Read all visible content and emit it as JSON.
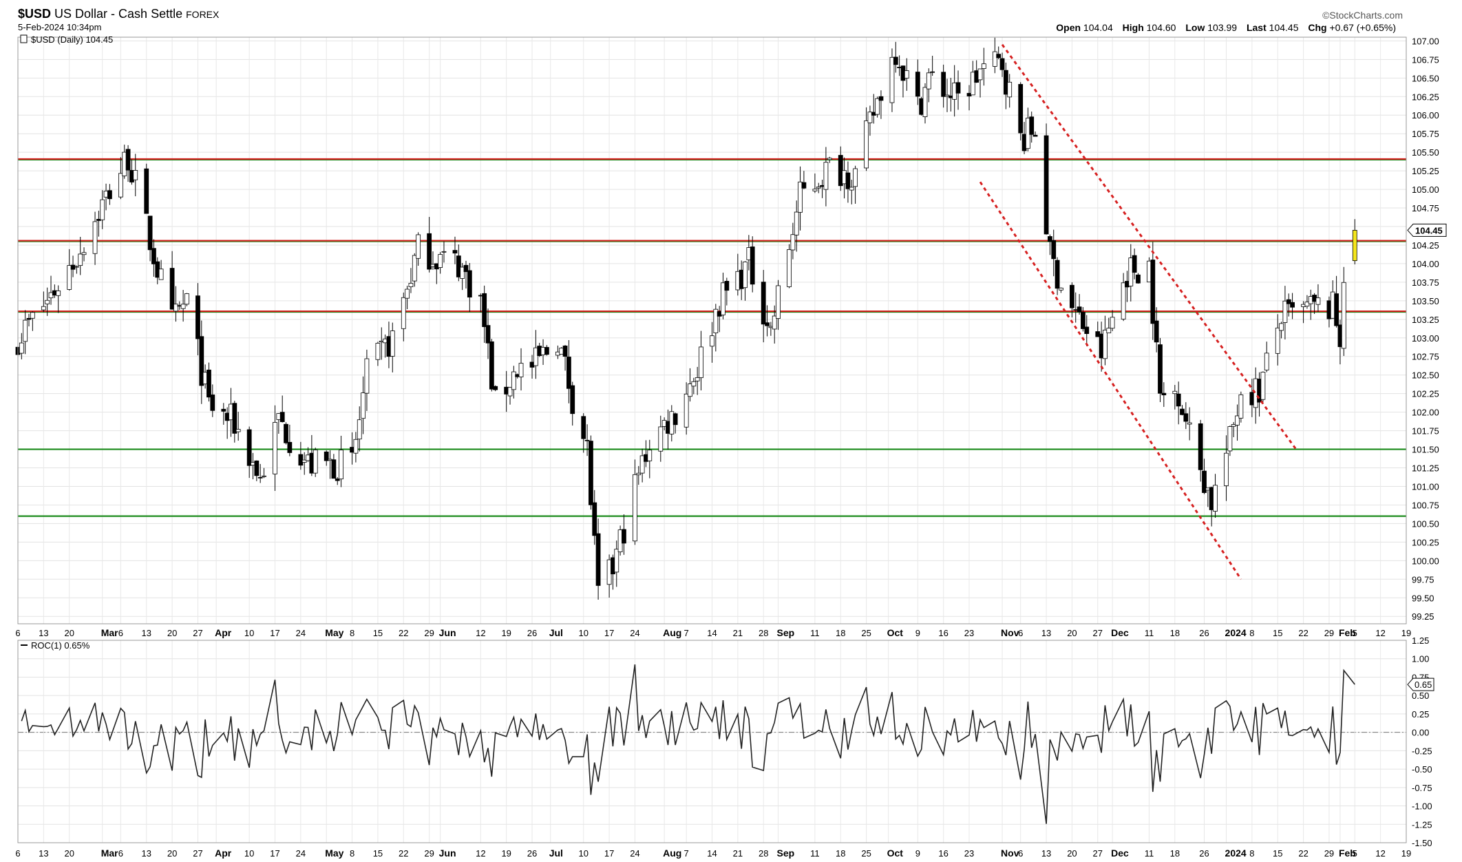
{
  "header": {
    "symbol": "$USD",
    "name": "US Dollar - Cash Settle",
    "exchange": "FOREX",
    "timestamp": "5-Feb-2024 10:34pm",
    "brand": "©StockCharts.com",
    "open_label": "Open",
    "open": "104.04",
    "high_label": "High",
    "high": "104.60",
    "low_label": "Low",
    "low": "103.99",
    "last_label": "Last",
    "last": "104.45",
    "chg_label": "Chg",
    "chg": "+0.67 (+0.65%)"
  },
  "chart_data": [
    {
      "type": "candlestick",
      "legend": "$USD (Daily) 104.45",
      "last_label": "104.45",
      "y_ticks": [
        "99.25",
        "99.50",
        "99.75",
        "100.00",
        "100.25",
        "100.50",
        "100.75",
        "101.00",
        "101.25",
        "101.50",
        "101.75",
        "102.00",
        "102.25",
        "102.50",
        "102.75",
        "103.00",
        "103.25",
        "103.50",
        "103.75",
        "104.00",
        "104.25",
        "104.50",
        "104.75",
        "105.00",
        "105.25",
        "105.50",
        "105.75",
        "106.00",
        "106.25",
        "106.50",
        "106.75",
        "107.00"
      ],
      "ylim": [
        99.15,
        107.05
      ],
      "date_range": [
        "2023-02-06",
        "2024-02-19"
      ],
      "x_ticks": [
        {
          "date": "2023-02-06",
          "label": "6",
          "month": false
        },
        {
          "date": "2023-02-13",
          "label": "13",
          "month": false
        },
        {
          "date": "2023-02-20",
          "label": "20",
          "month": false
        },
        {
          "date": "2023-03-01",
          "label": "Mar",
          "month": true
        },
        {
          "date": "2023-03-06",
          "label": "6",
          "month": false
        },
        {
          "date": "2023-03-13",
          "label": "13",
          "month": false
        },
        {
          "date": "2023-03-20",
          "label": "20",
          "month": false
        },
        {
          "date": "2023-03-27",
          "label": "27",
          "month": false
        },
        {
          "date": "2023-04-01",
          "label": "Apr",
          "month": true
        },
        {
          "date": "2023-04-10",
          "label": "10",
          "month": false
        },
        {
          "date": "2023-04-17",
          "label": "17",
          "month": false
        },
        {
          "date": "2023-04-24",
          "label": "24",
          "month": false
        },
        {
          "date": "2023-05-01",
          "label": "May",
          "month": true
        },
        {
          "date": "2023-05-08",
          "label": "8",
          "month": false
        },
        {
          "date": "2023-05-15",
          "label": "15",
          "month": false
        },
        {
          "date": "2023-05-22",
          "label": "22",
          "month": false
        },
        {
          "date": "2023-05-29",
          "label": "29",
          "month": false
        },
        {
          "date": "2023-06-01",
          "label": "Jun",
          "month": true
        },
        {
          "date": "2023-06-12",
          "label": "12",
          "month": false
        },
        {
          "date": "2023-06-19",
          "label": "19",
          "month": false
        },
        {
          "date": "2023-06-26",
          "label": "26",
          "month": false
        },
        {
          "date": "2023-07-01",
          "label": "Jul",
          "month": true
        },
        {
          "date": "2023-07-10",
          "label": "10",
          "month": false
        },
        {
          "date": "2023-07-17",
          "label": "17",
          "month": false
        },
        {
          "date": "2023-07-24",
          "label": "24",
          "month": false
        },
        {
          "date": "2023-08-01",
          "label": "Aug",
          "month": true
        },
        {
          "date": "2023-08-07",
          "label": "7",
          "month": false
        },
        {
          "date": "2023-08-14",
          "label": "14",
          "month": false
        },
        {
          "date": "2023-08-21",
          "label": "21",
          "month": false
        },
        {
          "date": "2023-08-28",
          "label": "28",
          "month": false
        },
        {
          "date": "2023-09-01",
          "label": "Sep",
          "month": true
        },
        {
          "date": "2023-09-11",
          "label": "11",
          "month": false
        },
        {
          "date": "2023-09-18",
          "label": "18",
          "month": false
        },
        {
          "date": "2023-09-25",
          "label": "25",
          "month": false
        },
        {
          "date": "2023-10-01",
          "label": "Oct",
          "month": true
        },
        {
          "date": "2023-10-09",
          "label": "9",
          "month": false
        },
        {
          "date": "2023-10-16",
          "label": "16",
          "month": false
        },
        {
          "date": "2023-10-23",
          "label": "23",
          "month": false
        },
        {
          "date": "2023-11-01",
          "label": "Nov",
          "month": true
        },
        {
          "date": "2023-11-06",
          "label": "6",
          "month": false
        },
        {
          "date": "2023-11-13",
          "label": "13",
          "month": false
        },
        {
          "date": "2023-11-20",
          "label": "20",
          "month": false
        },
        {
          "date": "2023-11-27",
          "label": "27",
          "month": false
        },
        {
          "date": "2023-12-01",
          "label": "Dec",
          "month": true
        },
        {
          "date": "2023-12-11",
          "label": "11",
          "month": false
        },
        {
          "date": "2023-12-18",
          "label": "18",
          "month": false
        },
        {
          "date": "2023-12-26",
          "label": "26",
          "month": false
        },
        {
          "date": "2024-01-01",
          "label": "2024",
          "month": true
        },
        {
          "date": "2024-01-08",
          "label": "8",
          "month": false
        },
        {
          "date": "2024-01-15",
          "label": "15",
          "month": false
        },
        {
          "date": "2024-01-22",
          "label": "22",
          "month": false
        },
        {
          "date": "2024-01-29",
          "label": "29",
          "month": false
        },
        {
          "date": "2024-02-01",
          "label": "Feb",
          "month": true
        },
        {
          "date": "2024-02-05",
          "label": "5",
          "month": false
        },
        {
          "date": "2024-02-12",
          "label": "12",
          "month": false
        },
        {
          "date": "2024-02-19",
          "label": "19",
          "month": false
        }
      ],
      "close_path": [
        [
          "2023-02-06",
          103.0
        ],
        [
          "2023-02-14",
          103.5
        ],
        [
          "2023-02-22",
          104.1
        ],
        [
          "2023-03-01",
          104.8
        ],
        [
          "2023-03-08",
          105.45
        ],
        [
          "2023-03-14",
          104.3
        ],
        [
          "2023-03-20",
          103.2
        ],
        [
          "2023-03-24",
          103.5
        ],
        [
          "2023-03-30",
          102.1
        ],
        [
          "2023-04-06",
          101.85
        ],
        [
          "2023-04-13",
          101.1
        ],
        [
          "2023-04-18",
          101.9
        ],
        [
          "2023-04-26",
          101.3
        ],
        [
          "2023-05-03",
          101.3
        ],
        [
          "2023-05-08",
          101.3
        ],
        [
          "2023-05-12",
          102.5
        ],
        [
          "2023-05-19",
          103.0
        ],
        [
          "2023-05-26",
          104.2
        ],
        [
          "2023-05-31",
          104.1
        ],
        [
          "2023-06-06",
          104.0
        ],
        [
          "2023-06-12",
          103.5
        ],
        [
          "2023-06-16",
          102.1
        ],
        [
          "2023-06-22",
          102.6
        ],
        [
          "2023-06-26",
          102.6
        ],
        [
          "2023-07-03",
          103.0
        ],
        [
          "2023-07-07",
          102.2
        ],
        [
          "2023-07-11",
          101.5
        ],
        [
          "2023-07-14",
          99.5
        ],
        [
          "2023-07-18",
          99.9
        ],
        [
          "2023-07-24",
          101.0
        ],
        [
          "2023-07-28",
          101.6
        ],
        [
          "2023-08-04",
          102.0
        ],
        [
          "2023-08-10",
          102.6
        ],
        [
          "2023-08-16",
          103.5
        ],
        [
          "2023-08-24",
          104.0
        ],
        [
          "2023-08-30",
          103.1
        ],
        [
          "2023-09-07",
          104.9
        ],
        [
          "2023-09-15",
          105.3
        ],
        [
          "2023-09-22",
          105.2
        ],
        [
          "2023-09-28",
          106.2
        ],
        [
          "2023-10-03",
          106.9
        ],
        [
          "2023-10-09",
          106.1
        ],
        [
          "2023-10-12",
          106.5
        ],
        [
          "2023-10-20",
          106.2
        ],
        [
          "2023-10-26",
          106.6
        ],
        [
          "2023-11-01",
          106.7
        ],
        [
          "2023-11-06",
          105.7
        ],
        [
          "2023-11-10",
          105.8
        ],
        [
          "2023-11-14",
          104.1
        ],
        [
          "2023-11-20",
          103.4
        ],
        [
          "2023-11-28",
          102.8
        ],
        [
          "2023-12-05",
          103.9
        ],
        [
          "2023-12-11",
          104.0
        ],
        [
          "2023-12-14",
          102.2
        ],
        [
          "2023-12-19",
          102.3
        ],
        [
          "2023-12-22",
          101.7
        ],
        [
          "2023-12-28",
          100.8
        ],
        [
          "2024-01-02",
          101.6
        ],
        [
          "2024-01-05",
          102.3
        ],
        [
          "2024-01-10",
          102.3
        ],
        [
          "2024-01-16",
          103.3
        ],
        [
          "2024-01-19",
          103.3
        ],
        [
          "2024-01-24",
          103.4
        ],
        [
          "2024-01-30",
          103.4
        ],
        [
          "2024-02-01",
          103.0
        ],
        [
          "2024-02-02",
          103.9
        ],
        [
          "2024-02-05",
          104.45
        ]
      ],
      "support_lines_green": [
        105.4,
        104.3,
        103.35,
        101.5,
        100.6
      ],
      "resistance_lines_red": [
        105.4,
        104.3,
        103.35
      ],
      "channel_lines": [
        {
          "from": [
            "2023-11-01",
            106.95
          ],
          "to": [
            "2024-01-20",
            101.5
          ]
        },
        {
          "from": [
            "2023-10-26",
            105.1
          ],
          "to": [
            "2024-01-05",
            99.75
          ]
        }
      ],
      "last_candle": {
        "date": "2024-02-05",
        "open": 104.04,
        "high": 104.6,
        "low": 103.99,
        "close": 104.45
      }
    },
    {
      "type": "line",
      "legend": "ROC(1) 0.65%",
      "last_label": "0.65",
      "y_ticks": [
        "-1.50",
        "-1.25",
        "-1.00",
        "-0.75",
        "-0.50",
        "-0.25",
        "0.00",
        "0.25",
        "0.50",
        "0.75",
        "1.00",
        "1.25"
      ],
      "ylim": [
        -1.5,
        1.25
      ],
      "zero_line": 0.0
    }
  ]
}
